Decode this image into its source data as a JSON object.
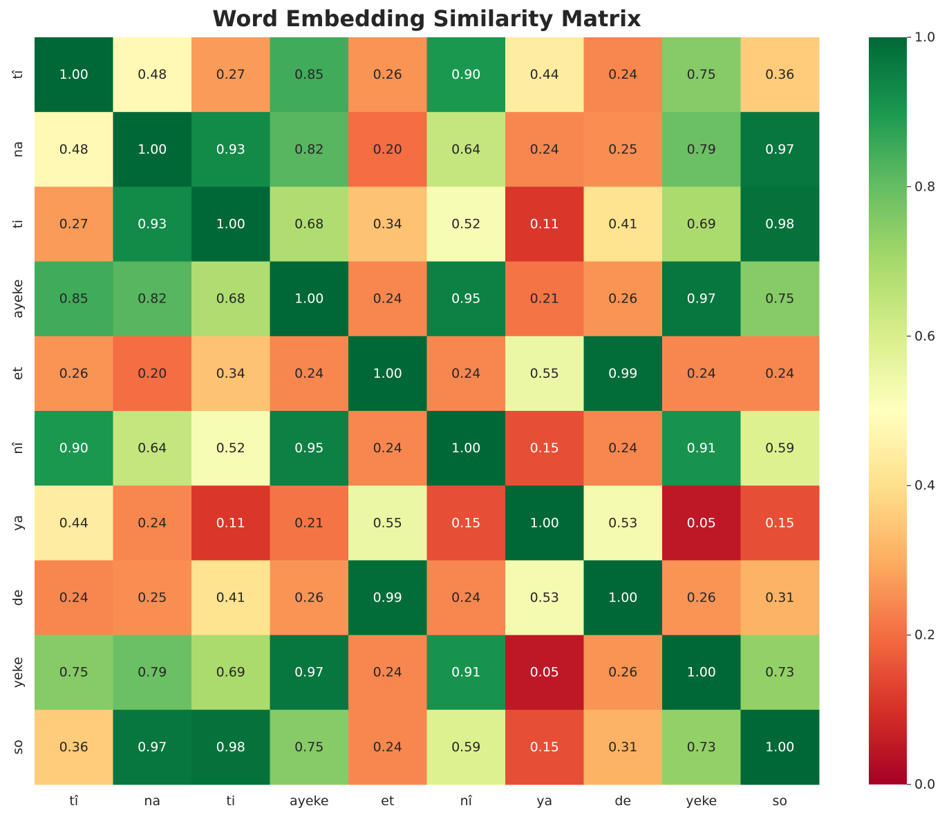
{
  "chart_data": {
    "type": "heatmap",
    "title": "Word Embedding Similarity Matrix",
    "xlabel": "",
    "ylabel": "",
    "row_labels": [
      "tî",
      "na",
      "ti",
      "ayeke",
      "et",
      "nî",
      "ya",
      "de",
      "yeke",
      "so"
    ],
    "col_labels": [
      "tî",
      "na",
      "ti",
      "ayeke",
      "et",
      "nî",
      "ya",
      "de",
      "yeke",
      "so"
    ],
    "values": [
      [
        1.0,
        0.48,
        0.27,
        0.85,
        0.26,
        0.9,
        0.44,
        0.24,
        0.75,
        0.36
      ],
      [
        0.48,
        1.0,
        0.93,
        0.82,
        0.2,
        0.64,
        0.24,
        0.25,
        0.79,
        0.97
      ],
      [
        0.27,
        0.93,
        1.0,
        0.68,
        0.34,
        0.52,
        0.11,
        0.41,
        0.69,
        0.98
      ],
      [
        0.85,
        0.82,
        0.68,
        1.0,
        0.24,
        0.95,
        0.21,
        0.26,
        0.97,
        0.75
      ],
      [
        0.26,
        0.2,
        0.34,
        0.24,
        1.0,
        0.24,
        0.55,
        0.99,
        0.24,
        0.24
      ],
      [
        0.9,
        0.64,
        0.52,
        0.95,
        0.24,
        1.0,
        0.15,
        0.24,
        0.91,
        0.59
      ],
      [
        0.44,
        0.24,
        0.11,
        0.21,
        0.55,
        0.15,
        1.0,
        0.53,
        0.05,
        0.15
      ],
      [
        0.24,
        0.25,
        0.41,
        0.26,
        0.99,
        0.24,
        0.53,
        1.0,
        0.26,
        0.31
      ],
      [
        0.75,
        0.79,
        0.69,
        0.97,
        0.24,
        0.91,
        0.05,
        0.26,
        1.0,
        0.73
      ],
      [
        0.36,
        0.97,
        0.98,
        0.75,
        0.24,
        0.59,
        0.15,
        0.31,
        0.73,
        1.0
      ]
    ],
    "value_format": "0.00",
    "colormap": "RdYlGn",
    "colormap_stops": [
      "#a50026",
      "#d73027",
      "#f46d43",
      "#fdae61",
      "#fee08b",
      "#ffffbf",
      "#d9ef8b",
      "#a6d96a",
      "#66bd63",
      "#1a9850",
      "#006837"
    ],
    "colorbar": {
      "range": [
        0.0,
        1.0
      ],
      "ticks": [
        "0.0",
        "0.2",
        "0.4",
        "0.6",
        "0.8",
        "1.0"
      ]
    },
    "grid": false
  }
}
